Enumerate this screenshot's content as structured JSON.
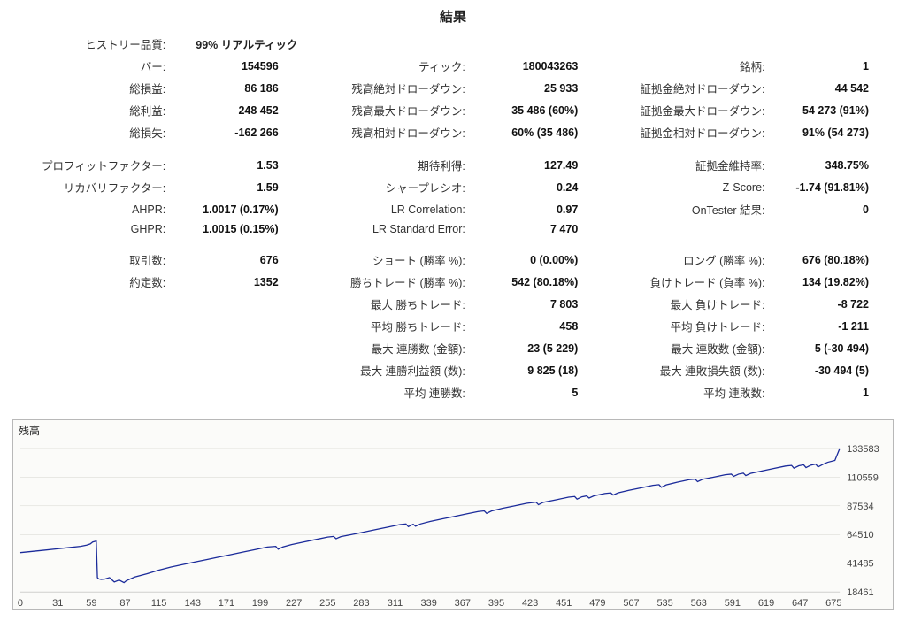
{
  "title": "結果",
  "history_quality": {
    "label": "ヒストリー品質:",
    "value": "99% リアルティック"
  },
  "rows": [
    [
      {
        "l": "バー:",
        "v": "154596"
      },
      {
        "l": "ティック:",
        "v": "180043263"
      },
      {
        "l": "銘柄:",
        "v": "1"
      }
    ],
    [
      {
        "l": "総損益:",
        "v": "86 186"
      },
      {
        "l": "残高絶対ドローダウン:",
        "v": "25 933"
      },
      {
        "l": "証拠金絶対ドローダウン:",
        "v": "44 542"
      }
    ],
    [
      {
        "l": "総利益:",
        "v": "248 452"
      },
      {
        "l": "残高最大ドローダウン:",
        "v": "35 486 (60%)"
      },
      {
        "l": "証拠金最大ドローダウン:",
        "v": "54 273 (91%)"
      }
    ],
    [
      {
        "l": "総損失:",
        "v": "-162 266"
      },
      {
        "l": "残高相対ドローダウン:",
        "v": "60% (35 486)"
      },
      {
        "l": "証拠金相対ドローダウン:",
        "v": "91% (54 273)"
      }
    ],
    "spacer",
    [
      {
        "l": "プロフィットファクター:",
        "v": "1.53"
      },
      {
        "l": "期待利得:",
        "v": "127.49"
      },
      {
        "l": "証拠金維持率:",
        "v": "348.75%"
      }
    ],
    [
      {
        "l": "リカバリファクター:",
        "v": "1.59"
      },
      {
        "l": "シャープレシオ:",
        "v": "0.24"
      },
      {
        "l": "Z-Score:",
        "v": "-1.74 (91.81%)"
      }
    ],
    [
      {
        "l": "AHPR:",
        "v": "1.0017 (0.17%)"
      },
      {
        "l": "LR Correlation:",
        "v": "0.97"
      },
      {
        "l": "OnTester 結果:",
        "v": "0"
      }
    ],
    [
      {
        "l": "GHPR:",
        "v": "1.0015 (0.15%)"
      },
      {
        "l": "LR Standard Error:",
        "v": "7 470"
      },
      {
        "l": "",
        "v": ""
      }
    ],
    "spacer",
    [
      {
        "l": "取引数:",
        "v": "676"
      },
      {
        "l": "ショート (勝率 %):",
        "v": "0 (0.00%)"
      },
      {
        "l": "ロング (勝率 %):",
        "v": "676 (80.18%)"
      }
    ],
    [
      {
        "l": "約定数:",
        "v": "1352"
      },
      {
        "l": "勝ちトレード (勝率 %):",
        "v": "542 (80.18%)"
      },
      {
        "l": "負けトレード (負率 %):",
        "v": "134 (19.82%)"
      }
    ],
    [
      {
        "l": "",
        "v": ""
      },
      {
        "l": "最大 勝ちトレード:",
        "v": "7 803"
      },
      {
        "l": "最大 負けトレード:",
        "v": "-8 722"
      }
    ],
    [
      {
        "l": "",
        "v": ""
      },
      {
        "l": "平均 勝ちトレード:",
        "v": "458"
      },
      {
        "l": "平均 負けトレード:",
        "v": "-1 211"
      }
    ],
    [
      {
        "l": "",
        "v": ""
      },
      {
        "l": "最大 連勝数 (金額):",
        "v": "23 (5 229)"
      },
      {
        "l": "最大 連敗数 (金額):",
        "v": "5 (-30 494)"
      }
    ],
    [
      {
        "l": "",
        "v": ""
      },
      {
        "l": "最大 連勝利益額 (数):",
        "v": "9 825 (18)"
      },
      {
        "l": "最大 連敗損失額 (数):",
        "v": "-30 494 (5)"
      }
    ],
    [
      {
        "l": "",
        "v": ""
      },
      {
        "l": "平均 連勝数:",
        "v": "5"
      },
      {
        "l": "平均 連敗数:",
        "v": "1"
      }
    ]
  ],
  "chart": {
    "title": "残高",
    "line_color": "#1a2a9a",
    "background_color": "#fbfbf9",
    "border_color": "#b8b8b8",
    "axis_text_color": "#444444",
    "gridline_color": "#d6d6d0",
    "x_min": 0,
    "x_max": 680,
    "x_ticks": [
      0,
      31,
      59,
      87,
      115,
      143,
      171,
      199,
      227,
      255,
      283,
      311,
      339,
      367,
      395,
      423,
      451,
      479,
      507,
      535,
      563,
      591,
      619,
      647,
      675
    ],
    "y_min": 18461,
    "y_max": 145000,
    "y_ticks": [
      18461,
      41485,
      64510,
      87534,
      110559,
      133583
    ],
    "points": [
      [
        0,
        50000
      ],
      [
        10,
        51000
      ],
      [
        20,
        52000
      ],
      [
        30,
        53000
      ],
      [
        40,
        54000
      ],
      [
        50,
        55000
      ],
      [
        55,
        56000
      ],
      [
        58,
        57000
      ],
      [
        60,
        58500
      ],
      [
        62,
        59000
      ],
      [
        63,
        59200
      ],
      [
        64,
        30000
      ],
      [
        65,
        29000
      ],
      [
        67,
        28500
      ],
      [
        70,
        28800
      ],
      [
        74,
        30000
      ],
      [
        78,
        26500
      ],
      [
        82,
        28000
      ],
      [
        86,
        26000
      ],
      [
        88,
        27500
      ],
      [
        95,
        30500
      ],
      [
        105,
        33000
      ],
      [
        115,
        36000
      ],
      [
        125,
        38500
      ],
      [
        135,
        40500
      ],
      [
        145,
        42500
      ],
      [
        155,
        44500
      ],
      [
        165,
        46500
      ],
      [
        175,
        48500
      ],
      [
        185,
        50500
      ],
      [
        195,
        52500
      ],
      [
        205,
        54500
      ],
      [
        212,
        55000
      ],
      [
        214,
        52800
      ],
      [
        218,
        54600
      ],
      [
        225,
        56500
      ],
      [
        235,
        58500
      ],
      [
        245,
        60500
      ],
      [
        255,
        62500
      ],
      [
        260,
        63000
      ],
      [
        262,
        61200
      ],
      [
        266,
        62800
      ],
      [
        275,
        64500
      ],
      [
        285,
        66500
      ],
      [
        295,
        68500
      ],
      [
        305,
        70500
      ],
      [
        315,
        72500
      ],
      [
        320,
        73000
      ],
      [
        322,
        70800
      ],
      [
        326,
        72800
      ],
      [
        328,
        71200
      ],
      [
        332,
        73000
      ],
      [
        340,
        75000
      ],
      [
        350,
        77000
      ],
      [
        360,
        79000
      ],
      [
        370,
        81000
      ],
      [
        380,
        83000
      ],
      [
        385,
        83500
      ],
      [
        387,
        81500
      ],
      [
        391,
        83400
      ],
      [
        400,
        85500
      ],
      [
        410,
        87500
      ],
      [
        420,
        89500
      ],
      [
        428,
        90500
      ],
      [
        430,
        88500
      ],
      [
        434,
        90400
      ],
      [
        445,
        92500
      ],
      [
        455,
        94500
      ],
      [
        460,
        95000
      ],
      [
        462,
        93000
      ],
      [
        466,
        94800
      ],
      [
        470,
        95500
      ],
      [
        472,
        93800
      ],
      [
        476,
        95600
      ],
      [
        485,
        97500
      ],
      [
        490,
        98000
      ],
      [
        492,
        96200
      ],
      [
        496,
        98000
      ],
      [
        505,
        100000
      ],
      [
        515,
        102000
      ],
      [
        525,
        104000
      ],
      [
        530,
        104500
      ],
      [
        532,
        102500
      ],
      [
        536,
        104400
      ],
      [
        545,
        106500
      ],
      [
        555,
        108500
      ],
      [
        560,
        109000
      ],
      [
        562,
        107000
      ],
      [
        566,
        108800
      ],
      [
        575,
        110500
      ],
      [
        585,
        112500
      ],
      [
        590,
        113000
      ],
      [
        592,
        111200
      ],
      [
        596,
        113000
      ],
      [
        600,
        113800
      ],
      [
        602,
        111800
      ],
      [
        606,
        113600
      ],
      [
        615,
        115500
      ],
      [
        625,
        117500
      ],
      [
        635,
        119500
      ],
      [
        640,
        120000
      ],
      [
        642,
        117800
      ],
      [
        646,
        119700
      ],
      [
        650,
        120500
      ],
      [
        652,
        118200
      ],
      [
        656,
        120200
      ],
      [
        660,
        121000
      ],
      [
        662,
        118800
      ],
      [
        666,
        120800
      ],
      [
        670,
        122500
      ],
      [
        676,
        124000
      ],
      [
        680,
        133583
      ]
    ]
  }
}
